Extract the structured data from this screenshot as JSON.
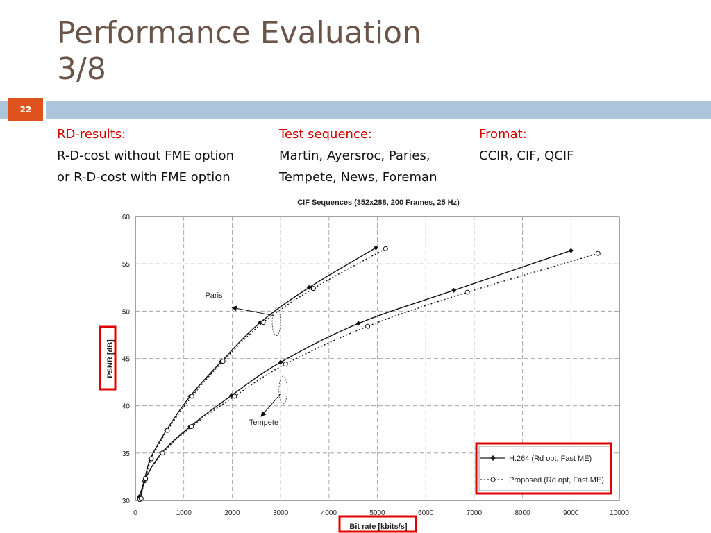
{
  "slide": {
    "title_line1": "Performance Evaluation",
    "title_line2": "3/8",
    "page_number": "22",
    "accent_bar_color": "#aec6dc",
    "badge_color": "#e0531f"
  },
  "columns": [
    {
      "heading": "RD-results:",
      "lines": [
        "R-D-cost without FME option",
        "or R-D-cost with FME option"
      ]
    },
    {
      "heading": "Test sequence:",
      "lines": [
        "Martin, Ayersroc, Paries,",
        "Tempete, News, Foreman"
      ]
    },
    {
      "heading": "Fromat:",
      "lines": [
        "CCIR, CIF, QCIF"
      ]
    }
  ],
  "chart_data": {
    "type": "line",
    "title": "CIF Sequences (352x288, 200 Frames, 25 Hz)",
    "xlabel": "Bit rate [kbits/s]",
    "ylabel": "PSNR [dB]",
    "xlim": [
      0,
      10000
    ],
    "ylim": [
      30,
      60
    ],
    "xticks": [
      0,
      1000,
      2000,
      3000,
      4000,
      5000,
      6000,
      7000,
      8000,
      9000,
      10000
    ],
    "yticks": [
      30,
      35,
      40,
      45,
      50,
      55,
      60
    ],
    "grid": true,
    "legend_position": "bottom-right",
    "series": [
      {
        "name": "H.264 (Rd opt, Fast ME)",
        "group": "Paris",
        "style": "solid",
        "x": [
          80,
          180,
          310,
          640,
          1130,
          1780,
          2580,
          3590,
          4970
        ],
        "y": [
          30.4,
          32.0,
          34.4,
          37.4,
          41.0,
          44.7,
          48.8,
          52.5,
          56.7
        ]
      },
      {
        "name": "Proposed (Rd opt, Fast ME)",
        "group": "Paris",
        "style": "dotted",
        "x": [
          90,
          200,
          330,
          660,
          1170,
          1810,
          2640,
          3680,
          5170
        ],
        "y": [
          30.1,
          32.1,
          34.4,
          37.4,
          41.0,
          44.7,
          48.8,
          52.4,
          56.6
        ]
      },
      {
        "name": "H.264 (Rd opt, Fast ME)",
        "group": "Tempete",
        "style": "solid",
        "x": [
          110,
          200,
          540,
          1130,
          1990,
          3000,
          4610,
          6580,
          9000
        ],
        "y": [
          30.3,
          32.2,
          35.0,
          37.8,
          41.1,
          44.6,
          48.7,
          52.2,
          56.4
        ]
      },
      {
        "name": "Proposed (Rd opt, Fast ME)",
        "group": "Tempete",
        "style": "dotted",
        "x": [
          120,
          210,
          560,
          1160,
          2050,
          3100,
          4800,
          6860,
          9560
        ],
        "y": [
          30.2,
          32.3,
          35.0,
          37.8,
          41.0,
          44.4,
          48.4,
          52.0,
          56.1
        ]
      }
    ],
    "annotations": [
      {
        "text": "Paris",
        "target_x": 2310,
        "target_y": 49.9
      },
      {
        "text": "Tempete",
        "target_x": 2450,
        "target_y": 42.7
      }
    ],
    "highlight_color": "#e00000"
  }
}
